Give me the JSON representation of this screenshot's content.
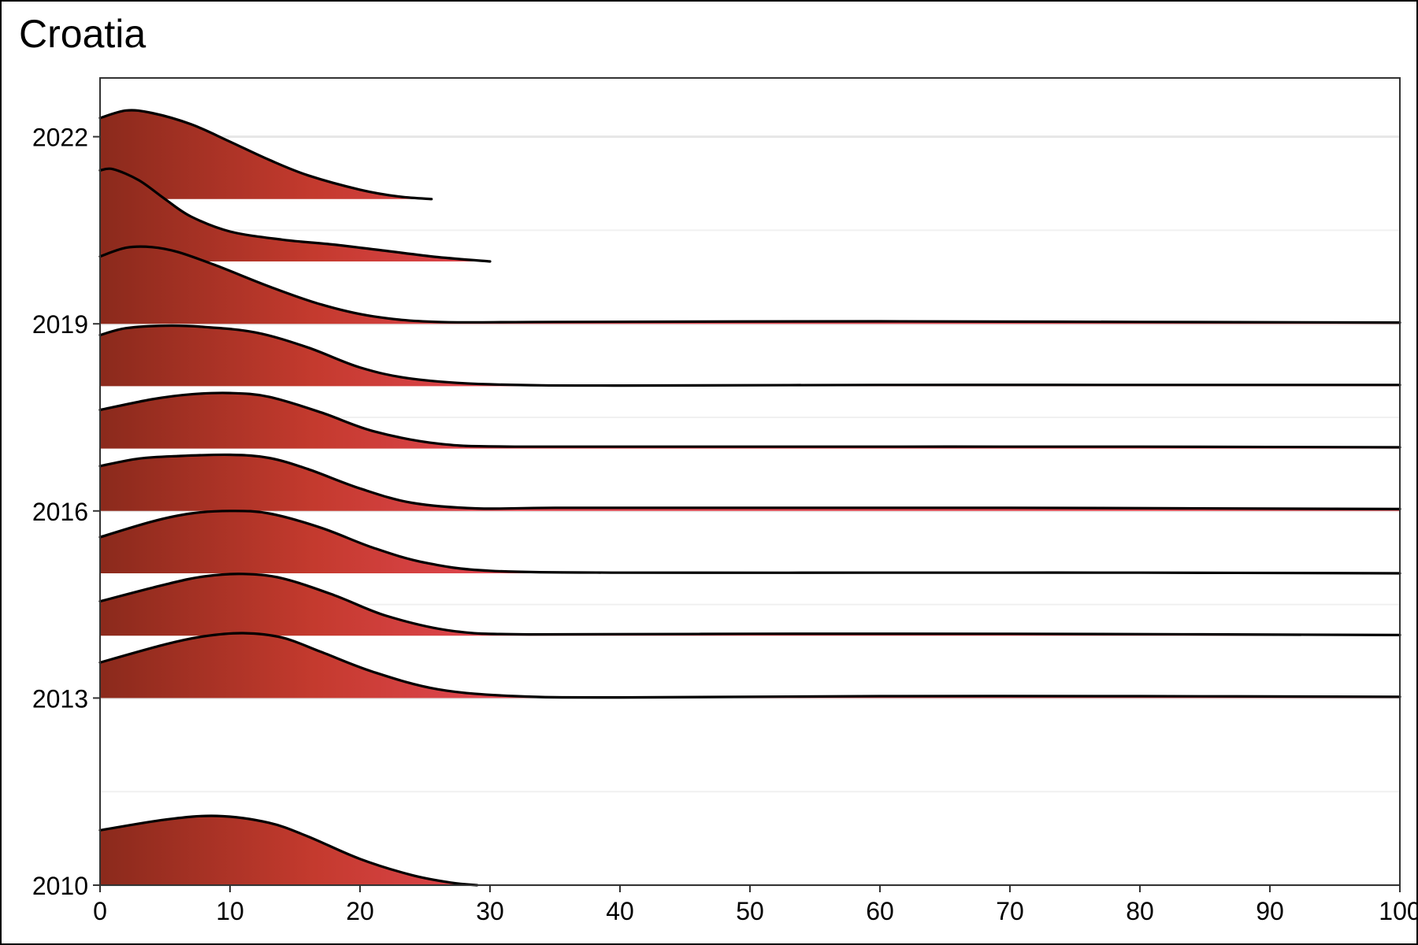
{
  "title": "Croatia",
  "chart_data": {
    "type": "ridgeline",
    "title": "Croatia",
    "xlabel": "",
    "ylabel": "",
    "xlim": [
      0,
      100
    ],
    "ylim": [
      2010,
      2022.8
    ],
    "x_ticks": [
      0,
      10,
      20,
      30,
      40,
      50,
      60,
      70,
      80,
      90,
      100
    ],
    "y_ticks": [
      2010,
      2013,
      2016,
      2019,
      2022
    ],
    "grid": true,
    "fill_gradient": [
      "#8b2a1c",
      "#c43a2e",
      "#e0464f"
    ],
    "series": [
      {
        "year": 2010,
        "x_max": 29,
        "points": [
          [
            0,
            0.88
          ],
          [
            5,
            1.05
          ],
          [
            9,
            1.11
          ],
          [
            13,
            1.0
          ],
          [
            16,
            0.78
          ],
          [
            20,
            0.42
          ],
          [
            24,
            0.16
          ],
          [
            27,
            0.04
          ],
          [
            29,
            0.0
          ]
        ]
      },
      {
        "year": 2013,
        "x_max": 100,
        "points": [
          [
            0,
            0.57
          ],
          [
            5,
            0.86
          ],
          [
            8,
            0.99
          ],
          [
            11,
            1.04
          ],
          [
            14,
            0.97
          ],
          [
            17,
            0.74
          ],
          [
            21,
            0.42
          ],
          [
            26,
            0.14
          ],
          [
            32,
            0.03
          ],
          [
            40,
            0.01
          ],
          [
            60,
            0.03
          ],
          [
            80,
            0.03
          ],
          [
            100,
            0.02
          ]
        ]
      },
      {
        "year": 2014,
        "x_max": 100,
        "points": [
          [
            0,
            0.55
          ],
          [
            5,
            0.82
          ],
          [
            8,
            0.95
          ],
          [
            11,
            0.99
          ],
          [
            14,
            0.92
          ],
          [
            18,
            0.65
          ],
          [
            22,
            0.32
          ],
          [
            27,
            0.08
          ],
          [
            33,
            0.02
          ],
          [
            50,
            0.03
          ],
          [
            70,
            0.03
          ],
          [
            100,
            0.01
          ]
        ]
      },
      {
        "year": 2015,
        "x_max": 100,
        "points": [
          [
            0,
            0.58
          ],
          [
            4,
            0.83
          ],
          [
            7,
            0.96
          ],
          [
            10,
            1.0
          ],
          [
            13,
            0.96
          ],
          [
            17,
            0.73
          ],
          [
            21,
            0.41
          ],
          [
            25,
            0.17
          ],
          [
            30,
            0.04
          ],
          [
            40,
            0.01
          ],
          [
            60,
            0.01
          ],
          [
            80,
            0.01
          ],
          [
            100,
            0.0
          ]
        ]
      },
      {
        "year": 2016,
        "x_max": 100,
        "points": [
          [
            0,
            0.72
          ],
          [
            3,
            0.84
          ],
          [
            6,
            0.88
          ],
          [
            10,
            0.9
          ],
          [
            13,
            0.85
          ],
          [
            16,
            0.67
          ],
          [
            20,
            0.36
          ],
          [
            24,
            0.13
          ],
          [
            29,
            0.04
          ],
          [
            35,
            0.05
          ],
          [
            50,
            0.05
          ],
          [
            70,
            0.05
          ],
          [
            100,
            0.03
          ]
        ]
      },
      {
        "year": 2017,
        "x_max": 100,
        "points": [
          [
            0,
            0.62
          ],
          [
            4,
            0.79
          ],
          [
            7,
            0.87
          ],
          [
            10,
            0.89
          ],
          [
            13,
            0.83
          ],
          [
            17,
            0.58
          ],
          [
            21,
            0.28
          ],
          [
            26,
            0.08
          ],
          [
            32,
            0.03
          ],
          [
            50,
            0.03
          ],
          [
            80,
            0.03
          ],
          [
            100,
            0.02
          ]
        ]
      },
      {
        "year": 2018,
        "x_max": 100,
        "points": [
          [
            0,
            0.82
          ],
          [
            2,
            0.93
          ],
          [
            5,
            0.97
          ],
          [
            8,
            0.95
          ],
          [
            12,
            0.86
          ],
          [
            16,
            0.62
          ],
          [
            20,
            0.3
          ],
          [
            24,
            0.12
          ],
          [
            30,
            0.03
          ],
          [
            40,
            0.01
          ],
          [
            60,
            0.02
          ],
          [
            80,
            0.02
          ],
          [
            100,
            0.02
          ]
        ]
      },
      {
        "year": 2019,
        "x_max": 100,
        "points": [
          [
            0,
            1.08
          ],
          [
            2,
            1.22
          ],
          [
            4,
            1.23
          ],
          [
            6,
            1.15
          ],
          [
            9,
            0.93
          ],
          [
            13,
            0.6
          ],
          [
            17,
            0.31
          ],
          [
            21,
            0.12
          ],
          [
            26,
            0.03
          ],
          [
            35,
            0.03
          ],
          [
            60,
            0.04
          ],
          [
            80,
            0.03
          ],
          [
            100,
            0.02
          ]
        ]
      },
      {
        "year": 2020,
        "x_max": 30,
        "points": [
          [
            0,
            1.46
          ],
          [
            1,
            1.48
          ],
          [
            3,
            1.3
          ],
          [
            5,
            1.0
          ],
          [
            7,
            0.72
          ],
          [
            10,
            0.48
          ],
          [
            14,
            0.35
          ],
          [
            18,
            0.27
          ],
          [
            22,
            0.17
          ],
          [
            26,
            0.07
          ],
          [
            30,
            0.0
          ]
        ]
      },
      {
        "year": 2021,
        "x_max": 25.5,
        "points": [
          [
            0,
            1.3
          ],
          [
            2,
            1.42
          ],
          [
            4,
            1.38
          ],
          [
            7,
            1.2
          ],
          [
            10,
            0.92
          ],
          [
            13,
            0.63
          ],
          [
            16,
            0.38
          ],
          [
            20,
            0.15
          ],
          [
            23,
            0.04
          ],
          [
            25.5,
            0.0
          ]
        ]
      }
    ]
  }
}
